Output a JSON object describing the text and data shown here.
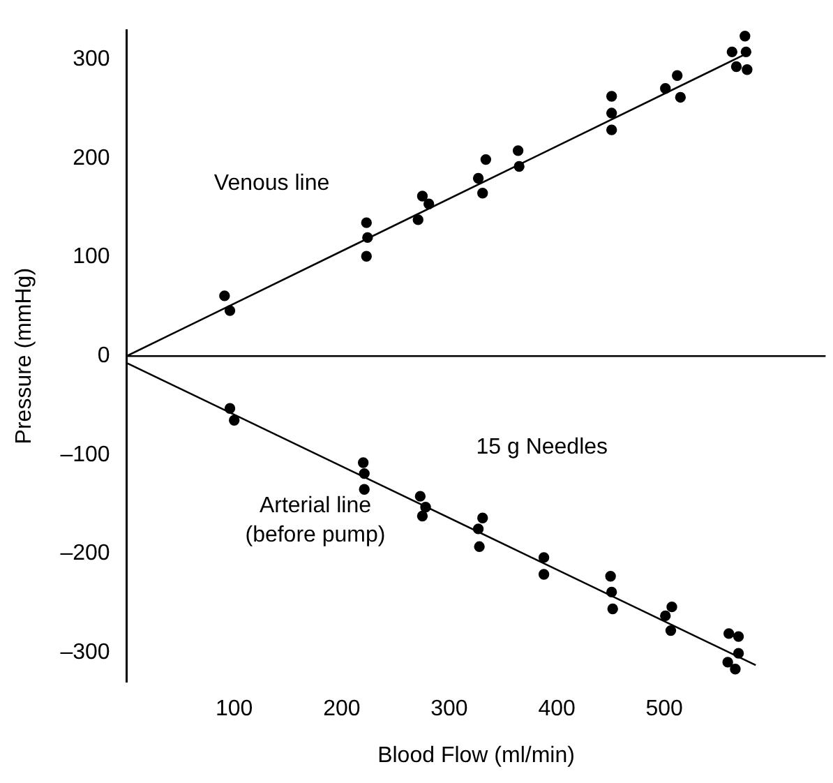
{
  "chart_data": {
    "type": "scatter",
    "xlabel": "Blood Flow (ml/min)",
    "ylabel": "Pressure (mmHg)",
    "xlim": [
      0,
      650
    ],
    "xticks": [
      100,
      200,
      300,
      400,
      500
    ],
    "ylim": [
      -330,
      330
    ],
    "yticks": [
      {
        "value": 300,
        "label": "300"
      },
      {
        "value": 200,
        "label": "200"
      },
      {
        "value": 100,
        "label": "100"
      },
      {
        "value": 0,
        "label": "0"
      },
      {
        "value": -100,
        "label": "–100"
      },
      {
        "value": -200,
        "label": "–200"
      },
      {
        "value": -300,
        "label": "–300"
      }
    ],
    "grid": false,
    "legend": false,
    "marker": "circle",
    "ref_lines": [
      {
        "axis": "y",
        "value": 0,
        "color": "#000000"
      }
    ],
    "annotations": [
      "Venous line",
      "Arterial line\n(before pump)",
      "15 g Needles"
    ],
    "series": [
      {
        "type": "scatter",
        "color": "#000000",
        "x": [
          91,
          96,
          223,
          224,
          223,
          275,
          281,
          271,
          327,
          331,
          334,
          364,
          365,
          451,
          451,
          451,
          501,
          512,
          515,
          563,
          567,
          575,
          576,
          577
        ],
        "values": [
          61,
          46,
          135,
          120,
          101,
          162,
          154,
          138,
          180,
          165,
          199,
          208,
          192,
          263,
          246,
          229,
          271,
          284,
          262,
          308,
          293,
          324,
          308,
          290
        ]
      },
      {
        "type": "line",
        "color": "#000000",
        "marker": "none",
        "line_style": "solid",
        "x": [
          0,
          576
        ],
        "values": [
          0,
          306
        ]
      },
      {
        "type": "scatter",
        "color": "#000000",
        "x": [
          96,
          100,
          220,
          221,
          221,
          273,
          278,
          275,
          331,
          327,
          328,
          388,
          388,
          450,
          451,
          452,
          507,
          501,
          506,
          560,
          569,
          569,
          559,
          566
        ],
        "values": [
          -53,
          -65,
          -108,
          -119,
          -135,
          -142,
          -153,
          -162,
          -164,
          -175,
          -193,
          -204,
          -221,
          -223,
          -239,
          -256,
          -254,
          -263,
          -278,
          -281,
          -284,
          -301,
          -310,
          -317
        ]
      },
      {
        "type": "line",
        "color": "#000000",
        "marker": "none",
        "line_style": "solid",
        "x": [
          0,
          585
        ],
        "values": [
          -7,
          -313
        ]
      }
    ]
  }
}
